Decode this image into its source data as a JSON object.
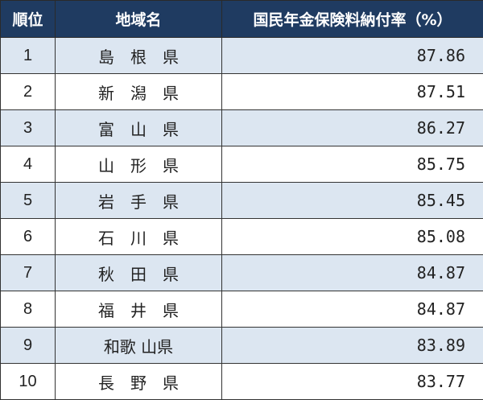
{
  "colors": {
    "header_bg": "#1f3b61",
    "stripe": "#dce6f1"
  },
  "headers": [
    "順位",
    "地域名",
    "国民年金保険料納付率（%）"
  ],
  "rows": [
    {
      "rank": "1",
      "name": "島　根　県",
      "rate": "87.86"
    },
    {
      "rank": "2",
      "name": "新　潟　県",
      "rate": "87.51"
    },
    {
      "rank": "3",
      "name": "富　山　県",
      "rate": "86.27"
    },
    {
      "rank": "4",
      "name": "山　形　県",
      "rate": "85.75"
    },
    {
      "rank": "5",
      "name": "岩　手　県",
      "rate": "85.45"
    },
    {
      "rank": "6",
      "name": "石　川　県",
      "rate": "85.08"
    },
    {
      "rank": "7",
      "name": "秋　田　県",
      "rate": "84.87"
    },
    {
      "rank": "8",
      "name": "福　井　県",
      "rate": "84.87"
    },
    {
      "rank": "9",
      "name": "和歌 山県",
      "rate": "83.89"
    },
    {
      "rank": "10",
      "name": "長　野　県",
      "rate": "83.77"
    }
  ]
}
